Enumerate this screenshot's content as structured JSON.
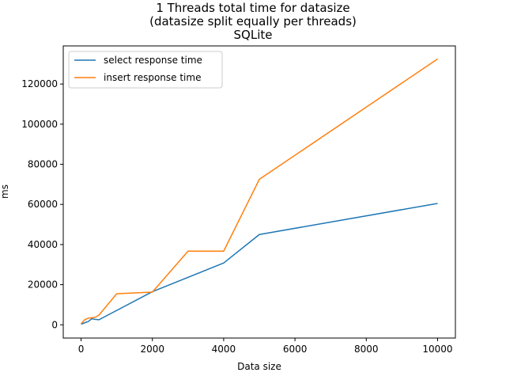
{
  "chart_data": {
    "type": "line",
    "title_lines": [
      "1 Threads total time for datasize",
      "(datasize split equally per threads)",
      "SQLite"
    ],
    "xlabel": "Data size",
    "ylabel": "ms",
    "xlim": [
      -500,
      10500
    ],
    "ylim": [
      -6600,
      139000
    ],
    "xticks": [
      0,
      2000,
      4000,
      6000,
      8000,
      10000
    ],
    "yticks": [
      0,
      20000,
      40000,
      60000,
      80000,
      100000,
      120000
    ],
    "grid": false,
    "legend_position": "upper-left",
    "series": [
      {
        "name": "select response time",
        "color": "#1f77b4",
        "x": [
          0,
          100,
          200,
          300,
          400,
          500,
          2000,
          4000,
          5000,
          10000
        ],
        "y": [
          300,
          1000,
          1600,
          3000,
          2700,
          2500,
          16500,
          30800,
          45000,
          60500
        ]
      },
      {
        "name": "insert response time",
        "color": "#ff7f0e",
        "x": [
          0,
          100,
          200,
          300,
          400,
          500,
          1000,
          2000,
          3000,
          4000,
          5000,
          10000
        ],
        "y": [
          500,
          2500,
          3300,
          3500,
          3800,
          4800,
          15500,
          16300,
          36700,
          36700,
          72500,
          132500
        ]
      }
    ]
  }
}
